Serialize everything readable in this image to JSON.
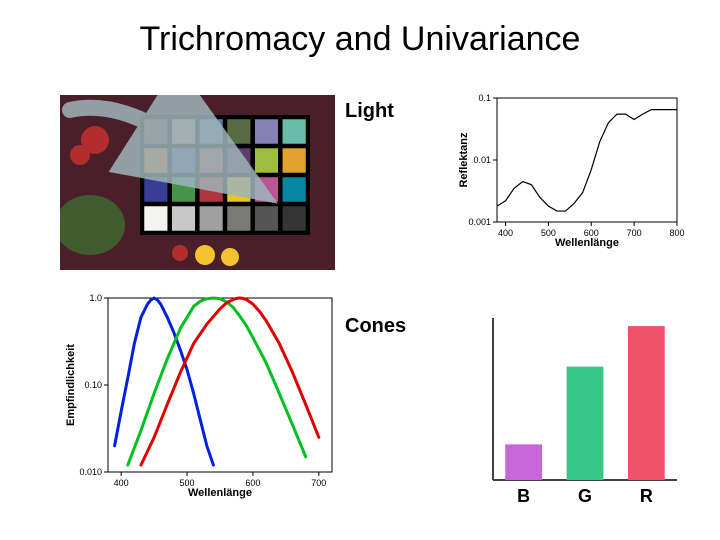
{
  "title": "Trichromacy and Univariance",
  "labels": {
    "light": "Light",
    "cones": "Cones"
  },
  "colorchecker": {
    "background": "#000000",
    "frame_gap_color": "#000000",
    "rows": [
      [
        "#735244",
        "#c29682",
        "#627a9d",
        "#576c43",
        "#8580b1",
        "#67bdaa"
      ],
      [
        "#d67e2c",
        "#505ba6",
        "#c15a63",
        "#5e3c6c",
        "#9dbc40",
        "#e0a32e"
      ],
      [
        "#383d96",
        "#469449",
        "#af363c",
        "#e7c71f",
        "#bb5695",
        "#0885a1"
      ],
      [
        "#f3f3f2",
        "#c8c8c8",
        "#a0a0a0",
        "#7a7a79",
        "#555555",
        "#343434"
      ]
    ],
    "scene": {
      "flower_red": "#b22e2e",
      "flower_yellow": "#f4c430",
      "leaf_green": "#3d6b2f",
      "leaf_dark": "#4a1f2a"
    },
    "arrow_color": "#9fb4ba"
  },
  "reflectance_chart": {
    "xlabel": "Wellenlänge",
    "ylabel": "Reflektanz",
    "xlim": [
      380,
      800
    ],
    "ylim_log": [
      0.001,
      0.1
    ],
    "xticks": [
      400,
      500,
      600,
      700,
      800
    ],
    "yticks": [
      0.001,
      0.01,
      0.1
    ],
    "ytick_labels": [
      "0.001",
      "0.01",
      "0.1"
    ],
    "line_color": "#000000",
    "background": "#ffffff",
    "data": [
      [
        380,
        0.0018
      ],
      [
        400,
        0.0022
      ],
      [
        420,
        0.0035
      ],
      [
        440,
        0.0045
      ],
      [
        460,
        0.004
      ],
      [
        480,
        0.0025
      ],
      [
        500,
        0.0018
      ],
      [
        520,
        0.0015
      ],
      [
        540,
        0.0015
      ],
      [
        560,
        0.002
      ],
      [
        580,
        0.003
      ],
      [
        600,
        0.007
      ],
      [
        620,
        0.02
      ],
      [
        640,
        0.04
      ],
      [
        660,
        0.055
      ],
      [
        680,
        0.055
      ],
      [
        700,
        0.045
      ],
      [
        720,
        0.055
      ],
      [
        740,
        0.065
      ],
      [
        760,
        0.065
      ],
      [
        800,
        0.065
      ]
    ]
  },
  "cone_chart": {
    "xlabel": "Wellenlänge",
    "ylabel": "Empfindlichkeit",
    "xlim": [
      380,
      720
    ],
    "ylim_log": [
      0.01,
      1.0
    ],
    "xticks": [
      400,
      500,
      600,
      700
    ],
    "yticks": [
      0.01,
      0.1,
      1.0
    ],
    "ytick_labels": [
      "0.010",
      "0.10",
      "1.0"
    ],
    "background": "#ffffff",
    "series": {
      "S": {
        "color": "#0020e0",
        "stroke_width": 3,
        "data": [
          [
            390,
            0.02
          ],
          [
            400,
            0.05
          ],
          [
            410,
            0.12
          ],
          [
            420,
            0.3
          ],
          [
            430,
            0.6
          ],
          [
            440,
            0.85
          ],
          [
            445,
            0.95
          ],
          [
            450,
            1.0
          ],
          [
            455,
            0.95
          ],
          [
            460,
            0.85
          ],
          [
            470,
            0.6
          ],
          [
            480,
            0.4
          ],
          [
            490,
            0.25
          ],
          [
            500,
            0.15
          ],
          [
            510,
            0.08
          ],
          [
            520,
            0.04
          ],
          [
            530,
            0.02
          ],
          [
            540,
            0.012
          ]
        ]
      },
      "M": {
        "color": "#00c020",
        "stroke_width": 3,
        "data": [
          [
            410,
            0.012
          ],
          [
            430,
            0.03
          ],
          [
            450,
            0.08
          ],
          [
            470,
            0.2
          ],
          [
            490,
            0.45
          ],
          [
            500,
            0.6
          ],
          [
            510,
            0.8
          ],
          [
            520,
            0.92
          ],
          [
            530,
            0.98
          ],
          [
            540,
            1.0
          ],
          [
            550,
            0.98
          ],
          [
            560,
            0.9
          ],
          [
            570,
            0.78
          ],
          [
            580,
            0.62
          ],
          [
            590,
            0.48
          ],
          [
            600,
            0.35
          ],
          [
            620,
            0.18
          ],
          [
            640,
            0.08
          ],
          [
            660,
            0.035
          ],
          [
            680,
            0.015
          ]
        ]
      },
      "L": {
        "color": "#e00000",
        "stroke_width": 3,
        "data": [
          [
            430,
            0.012
          ],
          [
            450,
            0.025
          ],
          [
            470,
            0.06
          ],
          [
            490,
            0.14
          ],
          [
            510,
            0.3
          ],
          [
            530,
            0.5
          ],
          [
            550,
            0.75
          ],
          [
            560,
            0.88
          ],
          [
            570,
            0.96
          ],
          [
            575,
            0.99
          ],
          [
            580,
            1.0
          ],
          [
            585,
            0.99
          ],
          [
            590,
            0.96
          ],
          [
            600,
            0.85
          ],
          [
            610,
            0.7
          ],
          [
            620,
            0.55
          ],
          [
            640,
            0.3
          ],
          [
            660,
            0.14
          ],
          [
            680,
            0.06
          ],
          [
            700,
            0.025
          ]
        ]
      }
    }
  },
  "bar_chart": {
    "categories": [
      "B",
      "G",
      "R"
    ],
    "values": [
      0.22,
      0.7,
      0.95
    ],
    "colors": [
      "#c766d8",
      "#34c988",
      "#f0516a"
    ],
    "axis_color": "#404040",
    "label_fontsize": 18,
    "label_weight": "bold",
    "bar_width": 0.6
  }
}
